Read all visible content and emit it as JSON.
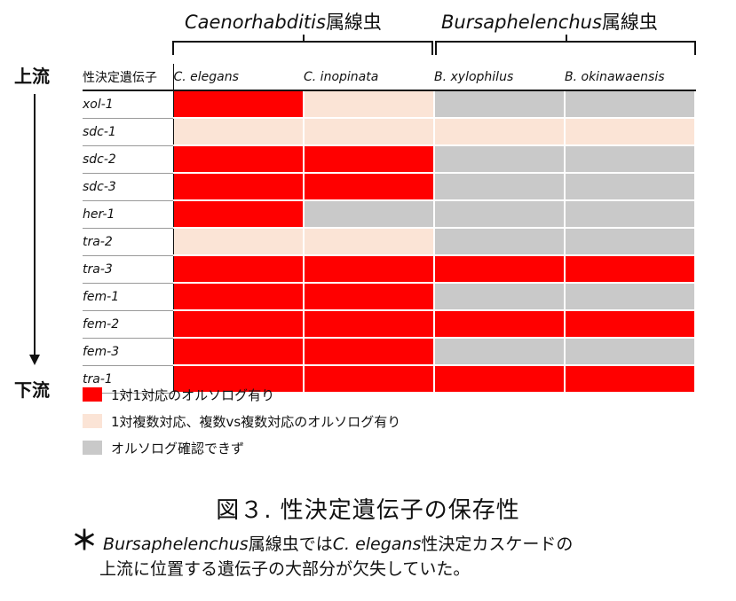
{
  "chart_data": {
    "type": "heatmap",
    "genus_labels": [
      {
        "name": "Caenorhabditis",
        "suffix": "属線虫"
      },
      {
        "name": "Bursaphelenchus",
        "suffix": "属線虫"
      }
    ],
    "row_header": "性決定遺伝子",
    "columns": [
      "C. elegans",
      "C. inopinata",
      "B. xylophilus",
      "B. okinawaensis"
    ],
    "rows": [
      "xol-1",
      "sdc-1",
      "sdc-2",
      "sdc-3",
      "her-1",
      "tra-2",
      "tra-3",
      "fem-1",
      "fem-2",
      "fem-3",
      "tra-1"
    ],
    "values": [
      [
        "1to1",
        "many",
        "none",
        "none"
      ],
      [
        "many",
        "many",
        "many",
        "many"
      ],
      [
        "1to1",
        "1to1",
        "none",
        "none"
      ],
      [
        "1to1",
        "1to1",
        "none",
        "none"
      ],
      [
        "1to1",
        "none",
        "none",
        "none"
      ],
      [
        "many",
        "many",
        "none",
        "none"
      ],
      [
        "1to1",
        "1to1",
        "1to1",
        "1to1"
      ],
      [
        "1to1",
        "1to1",
        "none",
        "none"
      ],
      [
        "1to1",
        "1to1",
        "1to1",
        "1to1"
      ],
      [
        "1to1",
        "1to1",
        "none",
        "none"
      ],
      [
        "1to1",
        "1to1",
        "1to1",
        "1to1"
      ]
    ],
    "colors": {
      "1to1": "#ff0000",
      "many": "#fbe4d6",
      "none": "#c9c9c9"
    },
    "legend": [
      {
        "key": "1to1",
        "label": "1対1対応のオルソログ有り"
      },
      {
        "key": "many",
        "label": "1対複数対応、複数vs複数対応のオルソログ有り"
      },
      {
        "key": "none",
        "label": "オルソログ確認できず"
      }
    ],
    "axis_top_label": "上流",
    "axis_bottom_label": "下流",
    "title": "図３. 性決定遺伝子の保存性"
  },
  "note": {
    "mark": "＊",
    "genus": "Bursaphelenchus",
    "text1": "属線虫では",
    "species": "C. elegans",
    "text2": "性決定カスケードの",
    "line2": "上流に位置する遺伝子の大部分が欠失していた。"
  }
}
